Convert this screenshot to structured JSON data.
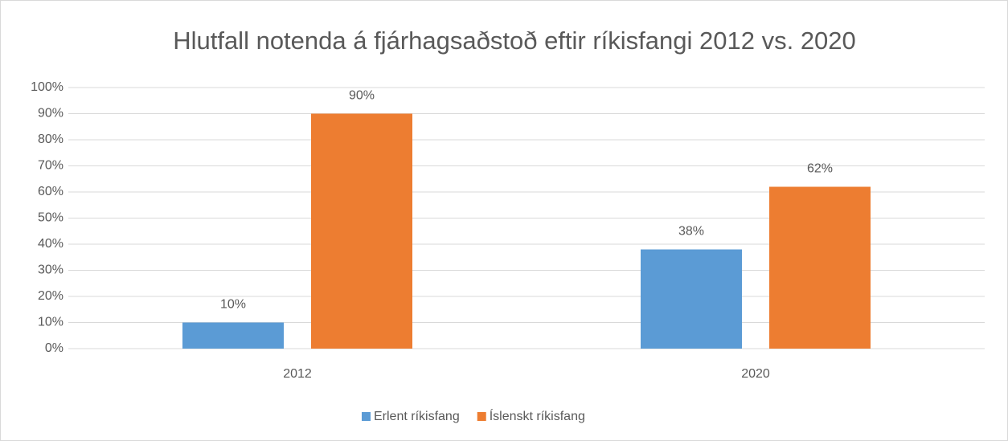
{
  "chart_data": {
    "type": "bar",
    "title": "Hlutfall notenda á fjárhagsaðstoð eftir ríkisfangi 2012 vs. 2020",
    "categories": [
      "2012",
      "2020"
    ],
    "series": [
      {
        "name": "Erlent ríkisfang",
        "color": "#5b9bd5",
        "values": [
          10,
          38
        ],
        "value_labels": [
          "10%",
          "38%"
        ]
      },
      {
        "name": "Íslenskt ríkisfang",
        "color": "#ed7d31",
        "values": [
          90,
          62
        ],
        "value_labels": [
          "90%",
          "62%"
        ]
      }
    ],
    "ylim": [
      0,
      100
    ],
    "yticks": [
      {
        "value": 0,
        "label": "0%"
      },
      {
        "value": 10,
        "label": "10%"
      },
      {
        "value": 20,
        "label": "20%"
      },
      {
        "value": 30,
        "label": "30%"
      },
      {
        "value": 40,
        "label": "40%"
      },
      {
        "value": 50,
        "label": "50%"
      },
      {
        "value": 60,
        "label": "60%"
      },
      {
        "value": 70,
        "label": "70%"
      },
      {
        "value": 80,
        "label": "80%"
      },
      {
        "value": 90,
        "label": "90%"
      },
      {
        "value": 100,
        "label": "100%"
      }
    ],
    "grid": true,
    "legend": "bottom"
  }
}
